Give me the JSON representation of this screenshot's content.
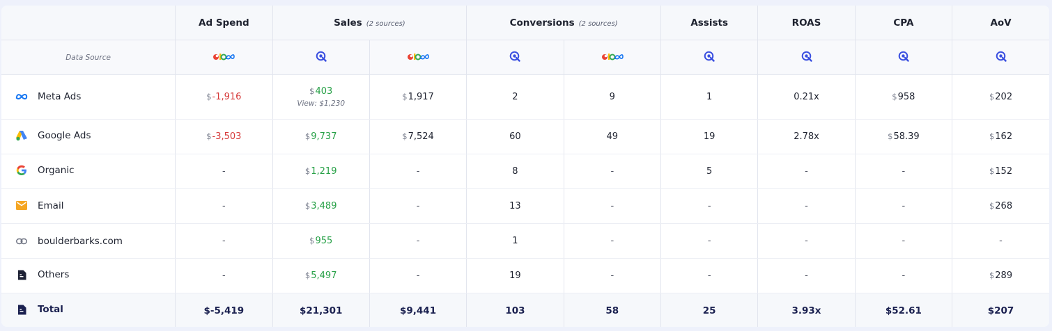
{
  "columns": {
    "ad_spend": "Ad Spend",
    "sales": "Sales",
    "sales_sub": "(2 sources)",
    "conversions": "Conversions",
    "conversions_sub": "(2 sources)",
    "assists": "Assists",
    "roas": "ROAS",
    "cpa": "CPA",
    "aov": "AoV"
  },
  "data_source_label": "Data Source",
  "icons": {
    "triplewhale": "multicolor-source-logo",
    "source": "blue-circle-arrow-logo"
  },
  "colors": {
    "negative": "#d63a3a",
    "positive": "#26a046",
    "total_text": "#1b2150"
  },
  "rows": [
    {
      "name": "Meta Ads",
      "icon": "meta-icon",
      "ad_spend": {
        "cur": "$",
        "val": "-1,916"
      },
      "sales": {
        "cur": "$",
        "val": "403",
        "note": "View: $1,230"
      },
      "sales2": {
        "cur": "$",
        "val": "1,917"
      },
      "conv": "2",
      "conv2": "9",
      "assists": "1",
      "roas": "0.21x",
      "cpa": {
        "cur": "$",
        "val": "958"
      },
      "aov": {
        "cur": "$",
        "val": "202"
      }
    },
    {
      "name": "Google Ads",
      "icon": "google-ads-icon",
      "ad_spend": {
        "cur": "$",
        "val": "-3,503"
      },
      "sales": {
        "cur": "$",
        "val": "9,737"
      },
      "sales2": {
        "cur": "$",
        "val": "7,524"
      },
      "conv": "60",
      "conv2": "49",
      "assists": "19",
      "roas": "2.78x",
      "cpa": {
        "cur": "$",
        "val": "58.39"
      },
      "aov": {
        "cur": "$",
        "val": "162"
      }
    },
    {
      "name": "Organic",
      "icon": "google-icon",
      "ad_spend": "-",
      "sales": {
        "cur": "$",
        "val": "1,219"
      },
      "sales2": "-",
      "conv": "8",
      "conv2": "-",
      "assists": "5",
      "roas": "-",
      "cpa": "-",
      "aov": {
        "cur": "$",
        "val": "152"
      }
    },
    {
      "name": "Email",
      "icon": "email-icon",
      "ad_spend": "-",
      "sales": {
        "cur": "$",
        "val": "3,489"
      },
      "sales2": "-",
      "conv": "13",
      "conv2": "-",
      "assists": "-",
      "roas": "-",
      "cpa": "-",
      "aov": {
        "cur": "$",
        "val": "268"
      }
    },
    {
      "name": "boulderbarks.com",
      "icon": "link-icon",
      "ad_spend": "-",
      "sales": {
        "cur": "$",
        "val": "955"
      },
      "sales2": "-",
      "conv": "1",
      "conv2": "-",
      "assists": "-",
      "roas": "-",
      "cpa": "-",
      "aov": "-"
    },
    {
      "name": "Others",
      "icon": "document-icon",
      "ad_spend": "-",
      "sales": {
        "cur": "$",
        "val": "5,497"
      },
      "sales2": "-",
      "conv": "19",
      "conv2": "-",
      "assists": "-",
      "roas": "-",
      "cpa": "-",
      "aov": {
        "cur": "$",
        "val": "289"
      }
    }
  ],
  "total": {
    "name": "Total",
    "icon": "document-icon",
    "ad_spend": "$-5,419",
    "sales": "$21,301",
    "sales2": "$9,441",
    "conv": "103",
    "conv2": "58",
    "assists": "25",
    "roas": "3.93x",
    "cpa": "$52.61",
    "aov": "$207"
  }
}
